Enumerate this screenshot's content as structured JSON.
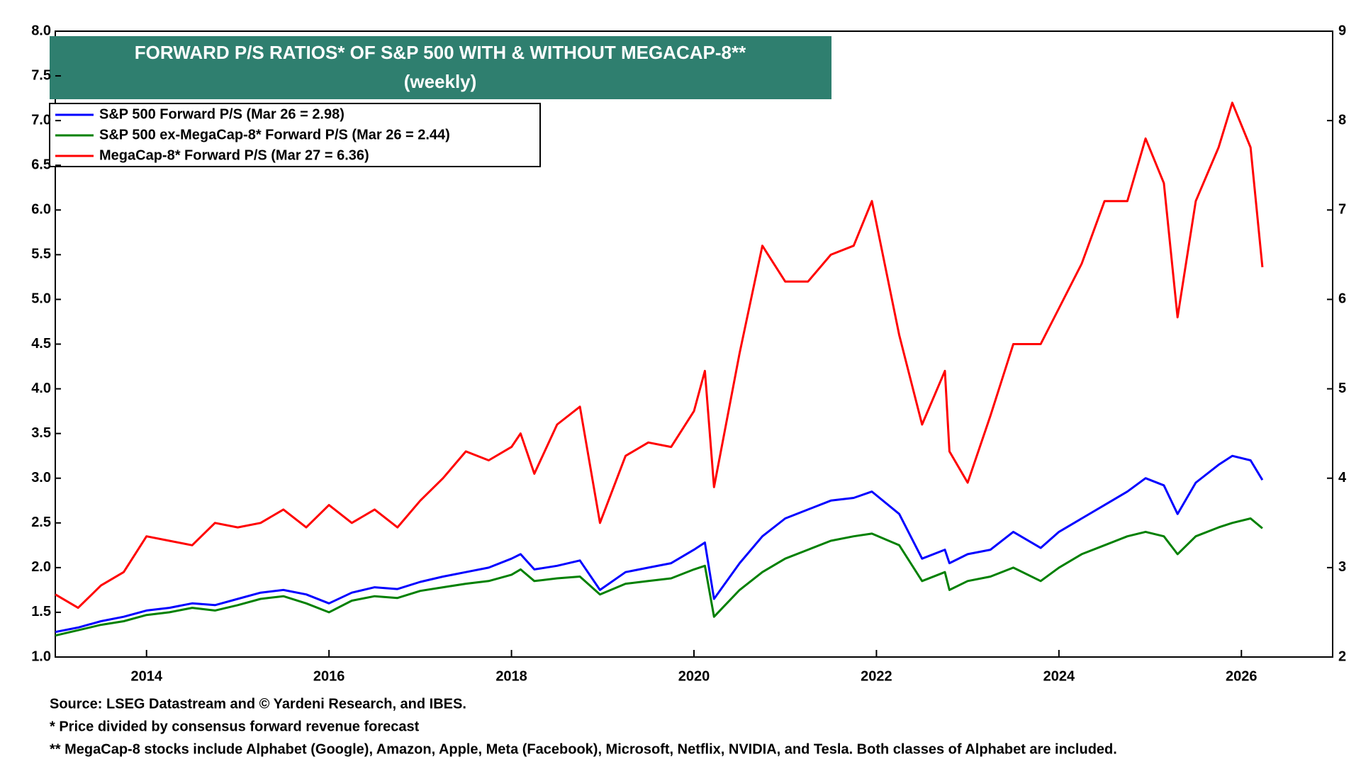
{
  "chart_data": {
    "type": "line",
    "title": "FORWARD P/S RATIOS* OF S&P 500 WITH & WITHOUT MEGACAP-8**",
    "subtitle": "(weekly)",
    "notes": [
      "Source: LSEG Datastream and © Yardeni Research, and IBES.",
      "* Price divided by consensus forward revenue forecast",
      "** MegaCap-8 stocks include Alphabet (Google), Amazon, Apple, Meta (Facebook), Microsoft, Netflix, NVIDIA, and Tesla. Both classes of Alphabet are included."
    ],
    "x": [
      2013.0,
      2013.25,
      2013.5,
      2013.75,
      2014.0,
      2014.25,
      2014.5,
      2014.75,
      2015.0,
      2015.25,
      2015.5,
      2015.75,
      2016.0,
      2016.25,
      2016.5,
      2016.75,
      2017.0,
      2017.25,
      2017.5,
      2017.75,
      2018.0,
      2018.1,
      2018.25,
      2018.5,
      2018.75,
      2018.97,
      2019.25,
      2019.5,
      2019.75,
      2020.0,
      2020.12,
      2020.22,
      2020.5,
      2020.75,
      2021.0,
      2021.25,
      2021.5,
      2021.75,
      2021.95,
      2022.25,
      2022.5,
      2022.75,
      2022.8,
      2023.0,
      2023.25,
      2023.5,
      2023.8,
      2024.0,
      2024.25,
      2024.5,
      2024.75,
      2024.95,
      2025.15,
      2025.3,
      2025.5,
      2025.75,
      2025.9,
      2026.1,
      2026.23
    ],
    "series": [
      {
        "name": "S&P 500 Forward P/S (Mar 26 = 2.98)",
        "color": "#0000ff",
        "values": [
          1.28,
          1.33,
          1.4,
          1.45,
          1.52,
          1.55,
          1.6,
          1.58,
          1.65,
          1.72,
          1.75,
          1.7,
          1.6,
          1.72,
          1.78,
          1.76,
          1.84,
          1.9,
          1.95,
          2.0,
          2.1,
          2.15,
          1.98,
          2.02,
          2.08,
          1.75,
          1.95,
          2.0,
          2.05,
          2.2,
          2.28,
          1.65,
          2.05,
          2.35,
          2.55,
          2.65,
          2.75,
          2.78,
          2.85,
          2.6,
          2.1,
          2.2,
          2.05,
          2.15,
          2.2,
          2.4,
          2.22,
          2.4,
          2.55,
          2.7,
          2.85,
          3.0,
          2.92,
          2.6,
          2.95,
          3.15,
          3.25,
          3.2,
          2.98
        ]
      },
      {
        "name": "S&P 500 ex-MegaCap-8* Forward P/S (Mar 26 = 2.44)",
        "color": "#008000",
        "values": [
          1.24,
          1.3,
          1.36,
          1.4,
          1.47,
          1.5,
          1.55,
          1.52,
          1.58,
          1.65,
          1.68,
          1.6,
          1.5,
          1.63,
          1.68,
          1.66,
          1.74,
          1.78,
          1.82,
          1.85,
          1.92,
          1.98,
          1.85,
          1.88,
          1.9,
          1.7,
          1.82,
          1.85,
          1.88,
          1.98,
          2.02,
          1.45,
          1.75,
          1.95,
          2.1,
          2.2,
          2.3,
          2.35,
          2.38,
          2.25,
          1.85,
          1.95,
          1.75,
          1.85,
          1.9,
          2.0,
          1.85,
          2.0,
          2.15,
          2.25,
          2.35,
          2.4,
          2.35,
          2.15,
          2.35,
          2.45,
          2.5,
          2.55,
          2.44
        ]
      },
      {
        "name": "MegaCap-8* Forward P/S (Mar 27 = 6.36)",
        "color": "#ff0000",
        "axis": "y2",
        "values": [
          2.7,
          2.55,
          2.8,
          2.95,
          3.35,
          3.3,
          3.25,
          3.5,
          3.45,
          3.5,
          3.65,
          3.45,
          3.7,
          3.5,
          3.65,
          3.45,
          3.75,
          4.0,
          4.3,
          4.2,
          4.35,
          4.5,
          4.05,
          4.6,
          4.8,
          3.5,
          4.25,
          4.4,
          4.35,
          4.75,
          5.2,
          3.9,
          5.4,
          6.6,
          6.2,
          6.2,
          6.5,
          6.6,
          7.1,
          5.6,
          4.6,
          5.2,
          4.3,
          3.95,
          4.7,
          5.5,
          5.5,
          5.9,
          6.4,
          7.1,
          7.1,
          7.8,
          7.3,
          5.8,
          7.1,
          7.7,
          8.2,
          7.7,
          6.36
        ]
      }
    ],
    "xlim": [
      2013,
      2027
    ],
    "xticks": [
      2014,
      2016,
      2018,
      2020,
      2022,
      2024,
      2026
    ],
    "ylim": [
      1,
      8
    ],
    "yticks": [
      {
        "value": 1,
        "label": "1.0"
      },
      1.5,
      {
        "value": 2,
        "label": "2.0"
      },
      2.5,
      {
        "value": 3,
        "label": "3.0"
      },
      3.5,
      {
        "value": 4,
        "label": "4.0"
      },
      4.5,
      {
        "value": 5,
        "label": "5.0"
      },
      5.5,
      {
        "value": 6,
        "label": "6.0"
      },
      6.5,
      {
        "value": 7,
        "label": "7.0"
      },
      7.5,
      {
        "value": 8,
        "label": "8.0"
      }
    ],
    "y2lim": [
      2,
      9
    ],
    "y2ticks": [
      2,
      3,
      4,
      5,
      6,
      7,
      8,
      9
    ],
    "grid": false,
    "legend": "top-left"
  }
}
